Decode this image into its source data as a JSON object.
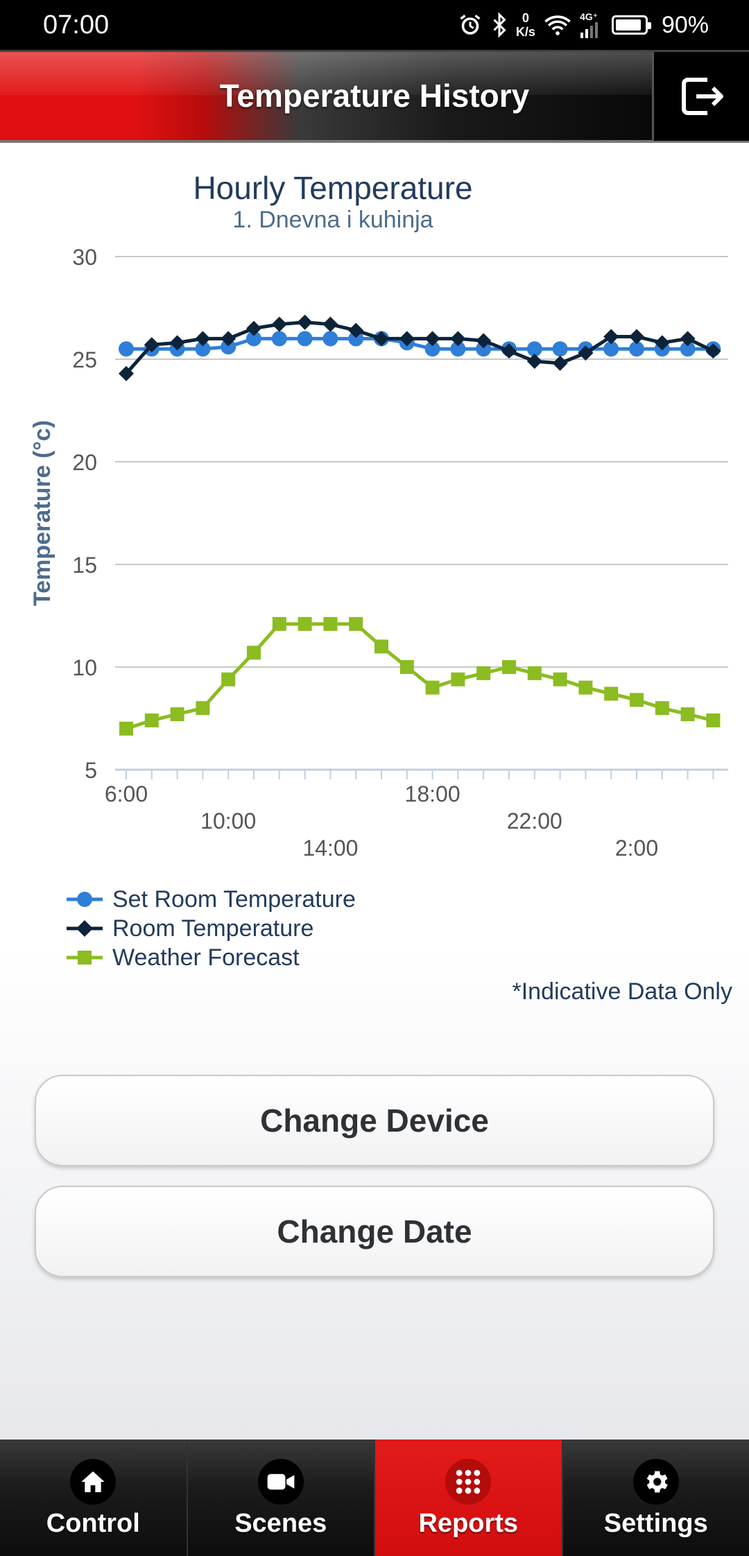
{
  "status_bar": {
    "time": "07:00",
    "net_speed_value": "0",
    "net_speed_unit": "K/s",
    "network_type": "4G⁺",
    "battery_percent": "90%",
    "battery_level": 0.9
  },
  "header": {
    "title": "Temperature History",
    "logout_icon": "logout-icon"
  },
  "chart_data": {
    "type": "line",
    "title": "Hourly Temperature",
    "subtitle": "1. Dnevna i kuhinja",
    "ylabel": "Temperature (°c)",
    "xlabel": "",
    "ylim": [
      5,
      30
    ],
    "yticks": [
      5,
      10,
      15,
      20,
      25,
      30
    ],
    "grid": true,
    "x": [
      "6:00",
      "7:00",
      "8:00",
      "9:00",
      "10:00",
      "11:00",
      "12:00",
      "13:00",
      "14:00",
      "15:00",
      "16:00",
      "17:00",
      "18:00",
      "19:00",
      "20:00",
      "21:00",
      "22:00",
      "23:00",
      "0:00",
      "1:00",
      "2:00",
      "3:00",
      "4:00",
      "5:00"
    ],
    "xtick_labels": [
      {
        "label": "6:00",
        "index": 0,
        "row": 0
      },
      {
        "label": "10:00",
        "index": 4,
        "row": 1
      },
      {
        "label": "14:00",
        "index": 8,
        "row": 2
      },
      {
        "label": "18:00",
        "index": 12,
        "row": 0
      },
      {
        "label": "22:00",
        "index": 16,
        "row": 1
      },
      {
        "label": "2:00",
        "index": 20,
        "row": 2
      }
    ],
    "series": [
      {
        "name": "Set Room Temperature",
        "color": "#2f7ed8",
        "marker": "circle",
        "values": [
          25.5,
          25.5,
          25.5,
          25.5,
          25.6,
          26.0,
          26.0,
          26.0,
          26.0,
          26.0,
          26.0,
          25.8,
          25.5,
          25.5,
          25.5,
          25.5,
          25.5,
          25.5,
          25.5,
          25.5,
          25.5,
          25.5,
          25.5,
          25.5
        ]
      },
      {
        "name": "Room Temperature",
        "color": "#0d233a",
        "marker": "diamond",
        "values": [
          24.3,
          25.7,
          25.8,
          26.0,
          26.0,
          26.5,
          26.7,
          26.8,
          26.7,
          26.4,
          26.0,
          26.0,
          26.0,
          26.0,
          25.9,
          25.4,
          24.9,
          24.8,
          25.3,
          26.1,
          26.1,
          25.8,
          26.0,
          25.4
        ]
      },
      {
        "name": "Weather Forecast",
        "color": "#8bbc21",
        "marker": "square",
        "values": [
          7.0,
          7.4,
          7.7,
          8.0,
          9.4,
          10.7,
          12.1,
          12.1,
          12.1,
          12.1,
          11.0,
          10.0,
          9.0,
          9.4,
          9.7,
          10.0,
          9.7,
          9.4,
          9.0,
          8.7,
          8.4,
          8.0,
          7.7,
          7.4
        ]
      }
    ]
  },
  "chart_note": "*Indicative Data Only",
  "buttons": {
    "change_device": "Change Device",
    "change_date": "Change Date"
  },
  "bottom_nav": [
    {
      "label": "Control",
      "icon": "home-icon"
    },
    {
      "label": "Scenes",
      "icon": "video-camera-icon"
    },
    {
      "label": "Reports",
      "icon": "grid-icon",
      "active": true
    },
    {
      "label": "Settings",
      "icon": "gear-icon"
    }
  ]
}
